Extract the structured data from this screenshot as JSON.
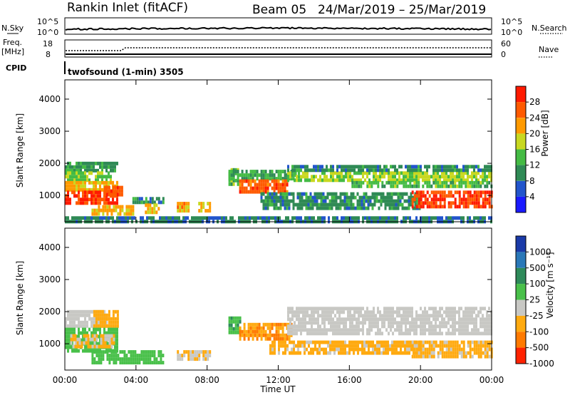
{
  "header": {
    "station": "Rankin Inlet (fitACF)",
    "beam": "Beam 05",
    "date_range": "24/Mar/2019 – 25/Mar/2019"
  },
  "strip_panels": {
    "nsky": {
      "left_label": "N.Sky",
      "right_label": "N.Search",
      "left_ticks": [
        "10^5",
        "10^0"
      ],
      "right_ticks": [
        "10^5",
        "10^0"
      ]
    },
    "freq": {
      "left_label": "Freq.",
      "left_unit": "[MHz]",
      "right_label": "Nave",
      "left_ticks": [
        "18",
        "8"
      ],
      "right_ticks": [
        "60",
        "0"
      ]
    },
    "cpid": {
      "label": "CPID",
      "value": "twofsound (1-min) 3505"
    }
  },
  "colors": {
    "power_scale": [
      "#1a1aff",
      "#2255cc",
      "#2f8a55",
      "#44bb44",
      "#c8d820",
      "#ff9a00",
      "#ff5a00",
      "#ff1a00"
    ],
    "velocity_scale": [
      "#1a3aa8",
      "#2a78b8",
      "#2e8a5a",
      "#49c04a",
      "#c8c8c4",
      "#ffaa10",
      "#ff7a00",
      "#ff2200"
    ],
    "ground_scatter": "#c8c8c4"
  },
  "chart_data": [
    {
      "type": "heatmap",
      "name": "power",
      "ylabel": "Slant Range [km]",
      "y_ticks": [
        1000,
        2000,
        3000,
        4000
      ],
      "x_range_hours": [
        0,
        24
      ],
      "ylim": [
        180,
        4600
      ],
      "colorbar": {
        "label": "Power [dB]",
        "ticks": [
          "4",
          "8",
          "12",
          "16",
          "20",
          "24",
          "28"
        ],
        "range": [
          0,
          32
        ]
      },
      "bands": [
        {
          "t0": 0.0,
          "t1": 2.9,
          "r0": 1750,
          "r1": 2050,
          "value": 11
        },
        {
          "t0": 0.0,
          "t1": 2.6,
          "r0": 1450,
          "r1": 1750,
          "value": 15
        },
        {
          "t0": 0.0,
          "t1": 2.9,
          "r0": 1150,
          "r1": 1450,
          "value": 21
        },
        {
          "t0": 0.0,
          "t1": 2.9,
          "r0": 800,
          "r1": 1150,
          "value": 28
        },
        {
          "t0": 2.2,
          "t1": 3.2,
          "r0": 1000,
          "r1": 1300,
          "value": 27
        },
        {
          "t0": 1.5,
          "t1": 3.8,
          "r0": 450,
          "r1": 700,
          "value": 21
        },
        {
          "t0": 3.8,
          "t1": 5.5,
          "r0": 800,
          "r1": 950,
          "value": 10
        },
        {
          "t0": 4.5,
          "t1": 5.3,
          "r0": 450,
          "r1": 750,
          "value": 21
        },
        {
          "t0": 6.3,
          "t1": 7.0,
          "r0": 550,
          "r1": 800,
          "value": 22
        },
        {
          "t0": 7.5,
          "t1": 8.2,
          "r0": 550,
          "r1": 800,
          "value": 20
        },
        {
          "t0": 9.2,
          "t1": 9.8,
          "r0": 1400,
          "r1": 1850,
          "value": 14
        },
        {
          "t0": 9.2,
          "t1": 13.0,
          "r0": 1500,
          "r1": 1800,
          "value": 12
        },
        {
          "t0": 9.8,
          "t1": 12.5,
          "r0": 1100,
          "r1": 1500,
          "value": 26
        },
        {
          "t0": 11.0,
          "t1": 20.0,
          "r0": 650,
          "r1": 1100,
          "value": 10
        },
        {
          "t0": 12.5,
          "t1": 24.0,
          "r0": 1450,
          "r1": 1750,
          "value": 17
        },
        {
          "t0": 12.5,
          "t1": 24.0,
          "r0": 1750,
          "r1": 1950,
          "value": 10
        },
        {
          "t0": 16.0,
          "t1": 24.0,
          "r0": 1300,
          "r1": 1450,
          "value": 14
        },
        {
          "t0": 19.5,
          "t1": 24.0,
          "r0": 650,
          "r1": 1150,
          "value": 28
        },
        {
          "t0": 0.0,
          "t1": 24.0,
          "r0": 200,
          "r1": 350,
          "value": 9
        }
      ]
    },
    {
      "type": "heatmap",
      "name": "velocity",
      "ylabel": "Slant Range [km]",
      "y_ticks": [
        1000,
        2000,
        3000,
        4000
      ],
      "x_ticks": [
        "00:00",
        "04:00",
        "08:00",
        "12:00",
        "16:00",
        "20:00",
        "00:00"
      ],
      "x_tick_hours": [
        0,
        4,
        8,
        12,
        16,
        20,
        24
      ],
      "xlabel": "Time UT",
      "x_range_hours": [
        0,
        24
      ],
      "ylim": [
        180,
        4600
      ],
      "colorbar": {
        "label": "Velocity [m s⁻¹]",
        "ticks": [
          "1000",
          "500",
          "100",
          "25",
          "-25",
          "-100",
          "-500",
          "-1000"
        ],
        "range": [
          -1200,
          1200
        ]
      },
      "bands": [
        {
          "t0": 0.0,
          "t1": 2.4,
          "r0": 1500,
          "r1": 2050,
          "value": 0
        },
        {
          "t0": 1.6,
          "t1": 3.0,
          "r0": 1500,
          "r1": 2050,
          "value": -400
        },
        {
          "t0": 0.0,
          "t1": 2.9,
          "r0": 800,
          "r1": 1500,
          "value": 150
        },
        {
          "t0": 0.3,
          "t1": 2.8,
          "r0": 900,
          "r1": 1300,
          "value": -300
        },
        {
          "t0": 1.5,
          "t1": 5.5,
          "r0": 400,
          "r1": 800,
          "value": 200
        },
        {
          "t0": 6.3,
          "t1": 8.2,
          "r0": 550,
          "r1": 800,
          "value": -300
        },
        {
          "t0": 9.2,
          "t1": 9.9,
          "r0": 1400,
          "r1": 1850,
          "value": 250
        },
        {
          "t0": 9.8,
          "t1": 12.8,
          "r0": 1100,
          "r1": 1650,
          "value": -600
        },
        {
          "t0": 11.5,
          "t1": 20.0,
          "r0": 700,
          "r1": 1100,
          "value": -350
        },
        {
          "t0": 12.5,
          "t1": 24.0,
          "r0": 1350,
          "r1": 2150,
          "value": 0
        },
        {
          "t0": 19.5,
          "t1": 24.0,
          "r0": 650,
          "r1": 1100,
          "value": -350
        }
      ]
    }
  ]
}
